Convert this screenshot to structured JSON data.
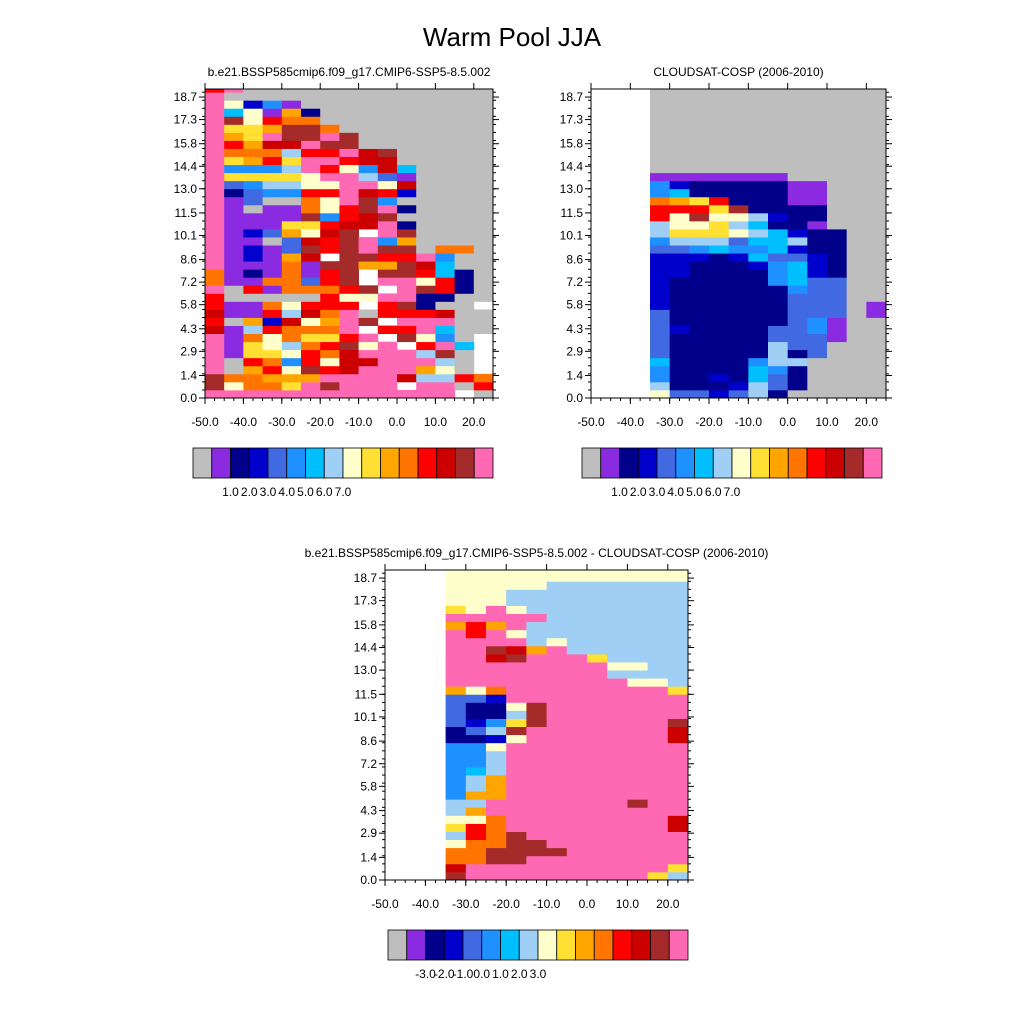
{
  "title": "Warm Pool JJA",
  "colors": {
    "raw_palette": [
      "#bebebe",
      "#8a2be2",
      "#00008b",
      "#0000cd",
      "#4169e1",
      "#1e90ff",
      "#00bfff",
      "#a0cff5",
      "#ffffcc",
      "#ffe033",
      "#ffa500",
      "#ff7500",
      "#ff0000",
      "#cd0000",
      "#a52a2a",
      "#ff69b4"
    ],
    "diff_palette": [
      "#bebebe",
      "#8a2be2",
      "#00008b",
      "#0000cd",
      "#4169e1",
      "#1e90ff",
      "#00bfff",
      "#a0cff5",
      "#ffffcc",
      "#ffe033",
      "#ffa500",
      "#ff7500",
      "#ff0000",
      "#cd0000",
      "#a52a2a",
      "#ff69b4"
    ],
    "missing": "#bebebe"
  },
  "chart_data": [
    {
      "type": "heatmap",
      "title": "b.e21.BSSP585cmip6.f09_g17.CMIP6-SSP5-8.5.002",
      "xlabel": "",
      "ylabel": "",
      "xlim": [
        -50,
        25
      ],
      "ylim": [
        0,
        19.2
      ],
      "x_ticks": [
        "-50.0",
        "-40.0",
        "-30.0",
        "-20.0",
        "-10.0",
        "0.0",
        "10.0",
        "20.0"
      ],
      "y_ticks": [
        "0.0",
        "1.4",
        "2.9",
        "4.3",
        "5.8",
        "7.2",
        "8.6",
        "10.1",
        "11.5",
        "13.0",
        "14.4",
        "15.8",
        "17.3",
        "18.7"
      ],
      "colorbar_labels": [
        "1.0",
        "2.0",
        "3.0",
        "4.0",
        "5.0",
        "6.0",
        "7.0"
      ],
      "x_bins": [
        -50,
        -45,
        -40,
        -35,
        -30,
        -25,
        -20,
        -15,
        -10,
        -5,
        0,
        5,
        10,
        15,
        20,
        25
      ],
      "y_bins": [
        0,
        0.5,
        1,
        1.5,
        2,
        2.5,
        3,
        3.5,
        4,
        4.5,
        5,
        5.5,
        6,
        6.5,
        7,
        7.5,
        8,
        8.5,
        9,
        9.5,
        10,
        10.5,
        11,
        11.5,
        12,
        12.5,
        13,
        13.5,
        14,
        14.5,
        15,
        15.5,
        16,
        16.5,
        17,
        17.5,
        18,
        18.5,
        19,
        19.2
      ],
      "rows": [
        "fffffffffffff.0",
        "e8bb9fefff ff0c",
        "ebbaaaffffd77cb",
        "f0ac8ecdfffa80.",
        "f0cb5c8ddfff70.",
        "f1998cbdfff7e0.",
        "f1987bce8f cf6.",
        "f1b8b99cf e850.",
        "d17cbbbf ccf600",
        "c0a3d8afe fff00",
        "d11c7dbf0cccd00",
        "c11b8ccc ce200.",
        "c00000c88ff2200",
        "f0c1bbbce fec20",
        "b11bb4ce ff8c20",
        "b121b1ce eec620",
        "f111b1eeaaed600",
        "f131ad eeccf500",
        "f1314ecefee0bb0",
        "f1104dcef5a0000",
        "f134a8de fe0000",
        "f11199cddf20000",
        "f1111e5cde00000",
        "f1011b8cef20000",
        "f1400b8fe500000",
        "f2455ccfdc30000",
        "f457788ff8d0000",
        "f99998ff7410000",
        "f5557fc85d60000",
        "f9ac9ffcdd00000",
        "fbbb7ccfde00000",
        "fcaddfee00000000",
        "fa9feefe00000000",
        "f99aeeb000000000",
        "fe8cbb0000000000",
        "f681a20000000000",
        "f83510000000000",
        "f00000000000000",
        "cf0000000000000",
        "500000000000000"
      ]
    },
    {
      "type": "heatmap",
      "title": "CLOUDSAT-COSP (2006-2010)",
      "xlabel": "",
      "ylabel": "",
      "xlim": [
        -50,
        25
      ],
      "ylim": [
        0,
        19.2
      ],
      "x_ticks": [
        "-50.0",
        "-40.0",
        "-30.0",
        "-20.0",
        "-10.0",
        "0.0",
        "10.0",
        "20.0"
      ],
      "y_ticks": [
        "0.0",
        "1.4",
        "2.9",
        "4.3",
        "5.8",
        "7.2",
        "8.6",
        "10.1",
        "11.5",
        "13.0",
        "14.4",
        "15.8",
        "17.3",
        "18.7"
      ],
      "colorbar_labels": [
        "1.0",
        "2.0",
        "3.0",
        "4.0",
        "5.0",
        "6.0",
        "7.0"
      ],
      "x_bins": [
        -50,
        -45,
        -40,
        -35,
        -30,
        -25,
        -20,
        -15,
        -10,
        -5,
        0,
        5,
        10,
        15,
        20,
        25
      ],
      "y_bins": [
        0,
        0.5,
        1,
        1.5,
        2,
        2.5,
        3,
        3.5,
        4,
        4.5,
        5,
        5.5,
        6,
        6.5,
        7,
        7.5,
        8,
        8.5,
        9,
        9.5,
        10,
        10.5,
        11,
        11.5,
        12,
        12.5,
        13,
        13.5,
        14,
        14.5,
        15,
        15.5,
        16,
        16.5,
        17,
        17.5,
        18,
        18.5,
        19,
        19.2
      ],
      "rows": [
        "   8443472000000",
        "   7222374200000",
        "   5223264200000",
        "   5222265200000",
        "   6222257700000",
        "   4222227240000",
        "   4222227440000",
        "   4222224441000",
        "   4322224451000",
        "   4222222451000",
        "   4222222444010",
        "   3222222444010",
        "   3222222444000",
        "   3222222544000",
        "   3222225644000",
        "   3322225632000",
        "   3322235632000",
        "   3332364432000",
        "   4456556322000",
        "   5777466722000",
        "   7999876322000",
        "   7889762210000",
        "   c8e887322000",
        "   ccc9e2222000",
        "   ba9c222110000",
        "   562222211000",
        "   5322222110000",
        "   1111111000000",
        "   000000000000",
        "   000000000000",
        "   000000000000",
        "   000000000000",
        "   000000000000",
        "   000000000000",
        "   000000000000",
        "   000000000000",
        "   000000000000",
        "   000000000000",
        "   000000000000",
        "   000000000000"
      ]
    },
    {
      "type": "heatmap",
      "title": "b.e21.BSSP585cmip6.f09_g17.CMIP6-SSP5-8.5.002 - CLOUDSAT-COSP (2006-2010)",
      "xlabel": "",
      "ylabel": "",
      "xlim": [
        -50,
        25
      ],
      "ylim": [
        0,
        19.2
      ],
      "x_ticks": [
        "-50.0",
        "-40.0",
        "-30.0",
        "-20.0",
        "-10.0",
        "0.0",
        "10.0",
        "20.0"
      ],
      "y_ticks": [
        "0.0",
        "1.4",
        "2.9",
        "4.3",
        "5.8",
        "7.2",
        "8.6",
        "10.1",
        "11.5",
        "13.0",
        "14.4",
        "15.8",
        "17.3",
        "18.7"
      ],
      "colorbar_labels": [
        "-3.0",
        "-2.0",
        "-1.0",
        "0.0",
        "1.0",
        "2.0",
        "3.0"
      ],
      "x_bins": [
        -50,
        -45,
        -40,
        -35,
        -30,
        -25,
        -20,
        -15,
        -10,
        -5,
        0,
        5,
        10,
        15,
        20,
        25
      ],
      "y_bins": [
        0,
        0.5,
        1,
        1.5,
        2,
        2.5,
        3,
        3.5,
        4,
        4.5,
        5,
        5.5,
        6,
        6.5,
        7,
        7.5,
        8,
        8.5,
        9,
        9.5,
        10,
        10.5,
        11,
        11.5,
        12,
        12.5,
        13,
        13.5,
        14,
        14.5,
        15,
        15.5,
        16,
        16.5,
        17,
        17.5,
        18,
        18.5,
        19,
        19.2
      ],
      "rows": [
        "   efffffffff977",
        "   dffffffffff977",
        "   bbeeffffffff77",
        "   bbeeeeffffffd77",
        "   8bbeefffffffd77",
        "   7cbeffffffffd77",
        "   9cbffffffffdd77",
        "   88bffffffffdd7",
        "   7afffffffffffca7",
        "   77fffffffeffba7",
        "   5aafffffffffa77",
        "   57affffffffff977",
        "   57affffffffff977",
        "   567fffffffff8777",
        "   557fffffffff8777",
        "   557fffffffff9877",
        "   558fffffffffdd777",
        "   2238fffffffde777",
        "   247efffffffd9777",
        "   4359effffffee777",
        "   4227efffffffee777",
        "   4228efffffffe877",
        "   443fffffffff87777",
        "   a8bffffffff9777",
        "   fffffffff88777",
        "   ffffffff777777",
        "   ffffffff8877777",
        "   ffdefff977777",
        "   ffedaf77777777",
        "   ffff787777777",
        "   fcf8777777777",
        "   acaf777777777",
        "   fffff77777777",
        "   98f8777777777",
        "   8887777777777",
        "   8887777777777",
        "   8888877777777",
        "   8888888888888",
        "   8888888888888",
        "   8888888888888"
      ]
    }
  ]
}
